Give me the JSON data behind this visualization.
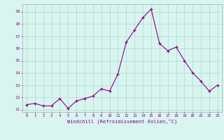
{
  "x": [
    0,
    1,
    2,
    3,
    4,
    5,
    6,
    7,
    8,
    9,
    10,
    11,
    12,
    13,
    14,
    15,
    16,
    17,
    18,
    19,
    20,
    21,
    22,
    23
  ],
  "y": [
    11.4,
    11.5,
    11.3,
    11.3,
    11.9,
    11.1,
    11.7,
    11.9,
    12.1,
    12.7,
    12.5,
    13.9,
    16.5,
    17.5,
    18.5,
    19.2,
    16.4,
    15.8,
    16.1,
    15.0,
    14.0,
    13.3,
    12.5,
    13.0
  ],
  "line_color": "#8B008B",
  "marker": "+",
  "bg_color": "#d8f5f0",
  "grid_color": "#b0d8d0",
  "tick_color": "#8B008B",
  "xlabel": "Windchill (Refroidissement éolien,°C)",
  "ylabel_ticks": [
    11,
    12,
    13,
    14,
    15,
    16,
    17,
    18,
    19
  ],
  "xlim": [
    -0.5,
    23.5
  ],
  "ylim": [
    10.8,
    19.6
  ]
}
